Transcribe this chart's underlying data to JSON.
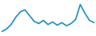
{
  "values": [
    1.0,
    1.8,
    3.2,
    5.5,
    7.2,
    7.8,
    6.0,
    4.2,
    3.5,
    4.5,
    3.2,
    4.0,
    3.0,
    3.8,
    2.8,
    3.5,
    4.8,
    9.5,
    6.8,
    4.5,
    3.8
  ],
  "line_color": "#1a8fc1",
  "background_color": "#ffffff",
  "linewidth": 1.2
}
